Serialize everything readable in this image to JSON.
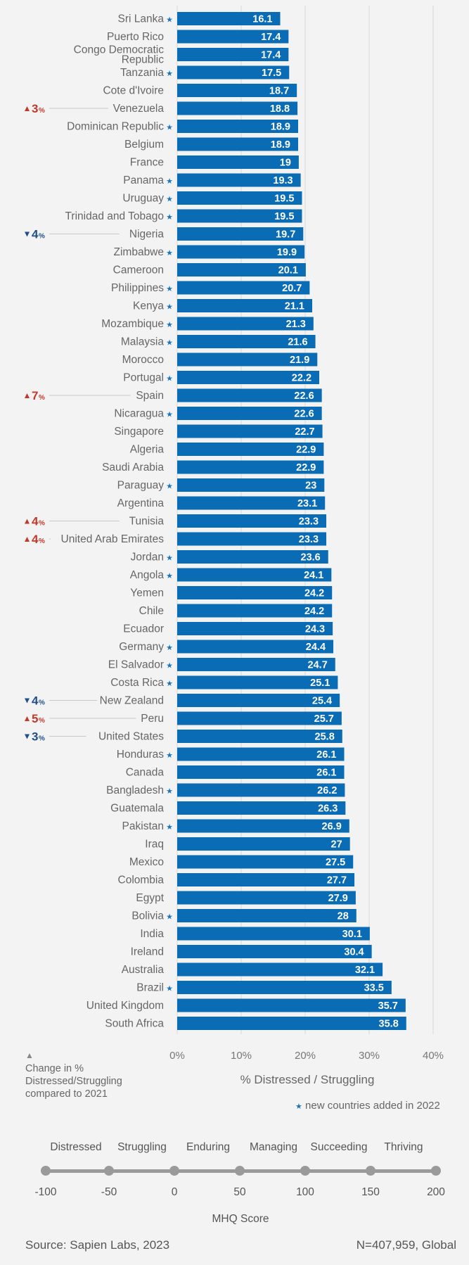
{
  "chart_data": {
    "type": "bar",
    "orientation": "horizontal",
    "xlabel": "% Distressed / Struggling",
    "xlim": [
      0,
      40
    ],
    "x_ticks": [
      "0%",
      "10%",
      "20%",
      "30%",
      "40%"
    ],
    "grid": true,
    "bar_color": "#0a6cb4",
    "rows": [
      {
        "country": "Sri Lanka",
        "value": 16.1,
        "new": true
      },
      {
        "country": "Puerto Rico",
        "value": 17.4,
        "new": false
      },
      {
        "country": "Congo Democratic\nRepublic",
        "value": 17.4,
        "new": false
      },
      {
        "country": "Tanzania",
        "value": 17.5,
        "new": true
      },
      {
        "country": "Cote d'Ivoire",
        "value": 18.7,
        "new": false
      },
      {
        "country": "Venezuela",
        "value": 18.8,
        "new": false,
        "change": {
          "dir": "up",
          "value": "3"
        }
      },
      {
        "country": "Dominican Republic",
        "value": 18.9,
        "new": true
      },
      {
        "country": "Belgium",
        "value": 18.9,
        "new": false
      },
      {
        "country": "France",
        "value": 19,
        "new": false
      },
      {
        "country": "Panama",
        "value": 19.3,
        "new": true
      },
      {
        "country": "Uruguay",
        "value": 19.5,
        "new": true
      },
      {
        "country": "Trinidad and Tobago",
        "value": 19.5,
        "new": true
      },
      {
        "country": "Nigeria",
        "value": 19.7,
        "new": false,
        "change": {
          "dir": "down",
          "value": "4"
        }
      },
      {
        "country": "Zimbabwe",
        "value": 19.9,
        "new": true
      },
      {
        "country": "Cameroon",
        "value": 20.1,
        "new": false
      },
      {
        "country": "Philippines",
        "value": 20.7,
        "new": true
      },
      {
        "country": "Kenya",
        "value": 21.1,
        "new": true
      },
      {
        "country": "Mozambique",
        "value": 21.3,
        "new": true
      },
      {
        "country": "Malaysia",
        "value": 21.6,
        "new": true
      },
      {
        "country": "Morocco",
        "value": 21.9,
        "new": false
      },
      {
        "country": "Portugal",
        "value": 22.2,
        "new": true
      },
      {
        "country": "Spain",
        "value": 22.6,
        "new": false,
        "change": {
          "dir": "up",
          "value": "7"
        }
      },
      {
        "country": "Nicaragua",
        "value": 22.6,
        "new": true
      },
      {
        "country": "Singapore",
        "value": 22.7,
        "new": false
      },
      {
        "country": "Algeria",
        "value": 22.9,
        "new": false
      },
      {
        "country": "Saudi Arabia",
        "value": 22.9,
        "new": false
      },
      {
        "country": "Paraguay",
        "value": 23,
        "new": true
      },
      {
        "country": "Argentina",
        "value": 23.1,
        "new": false
      },
      {
        "country": "Tunisia",
        "value": 23.3,
        "new": false,
        "change": {
          "dir": "up",
          "value": "4"
        }
      },
      {
        "country": "United Arab Emirates",
        "value": 23.3,
        "new": false,
        "change": {
          "dir": "up",
          "value": "4"
        }
      },
      {
        "country": "Jordan",
        "value": 23.6,
        "new": true
      },
      {
        "country": "Angola",
        "value": 24.1,
        "new": true
      },
      {
        "country": "Yemen",
        "value": 24.2,
        "new": false
      },
      {
        "country": "Chile",
        "value": 24.2,
        "new": false
      },
      {
        "country": "Ecuador",
        "value": 24.3,
        "new": false
      },
      {
        "country": "Germany",
        "value": 24.4,
        "new": true
      },
      {
        "country": "El Salvador",
        "value": 24.7,
        "new": true
      },
      {
        "country": "Costa Rica",
        "value": 25.1,
        "new": true
      },
      {
        "country": "New Zealand",
        "value": 25.4,
        "new": false,
        "change": {
          "dir": "down",
          "value": "4"
        }
      },
      {
        "country": "Peru",
        "value": 25.7,
        "new": false,
        "change": {
          "dir": "up",
          "value": "5"
        }
      },
      {
        "country": "United States",
        "value": 25.8,
        "new": false,
        "change": {
          "dir": "down",
          "value": "3"
        }
      },
      {
        "country": "Honduras",
        "value": 26.1,
        "new": true
      },
      {
        "country": "Canada",
        "value": 26.1,
        "new": false
      },
      {
        "country": "Bangladesh",
        "value": 26.2,
        "new": true
      },
      {
        "country": "Guatemala",
        "value": 26.3,
        "new": false
      },
      {
        "country": "Pakistan",
        "value": 26.9,
        "new": true
      },
      {
        "country": "Iraq",
        "value": 27,
        "new": false
      },
      {
        "country": "Mexico",
        "value": 27.5,
        "new": false
      },
      {
        "country": "Colombia",
        "value": 27.7,
        "new": false
      },
      {
        "country": "Egypt",
        "value": 27.9,
        "new": false
      },
      {
        "country": "Bolivia",
        "value": 28,
        "new": true
      },
      {
        "country": "India",
        "value": 30.1,
        "new": false
      },
      {
        "country": "Ireland",
        "value": 30.4,
        "new": false
      },
      {
        "country": "Australia",
        "value": 32.1,
        "new": false
      },
      {
        "country": "Brazil",
        "value": 33.5,
        "new": true
      },
      {
        "country": "United Kingdom",
        "value": 35.7,
        "new": false
      },
      {
        "country": "South Africa",
        "value": 35.8,
        "new": false
      }
    ],
    "colors": {
      "up": "#c0392b",
      "down": "#1f4f8b",
      "star": "#1b75bb"
    }
  },
  "legend": {
    "change_note": "Change in %\nDistressed/Struggling\ncompared to 2021",
    "new_star": "★",
    "new_note": "new countries added in 2022",
    "change_symbol": "▲",
    "percent_symbol": "%"
  },
  "mhq_scale": {
    "labels": [
      "Distressed",
      "Struggling",
      "Enduring",
      "Managing",
      "Succeeding",
      "Thriving"
    ],
    "ticks": [
      "-100",
      "-50",
      "0",
      "50",
      "100",
      "150",
      "200"
    ],
    "title": "MHQ Score"
  },
  "footer": {
    "source": "Source: Sapien Labs, 2023",
    "sample": "N=407,959, Global"
  }
}
